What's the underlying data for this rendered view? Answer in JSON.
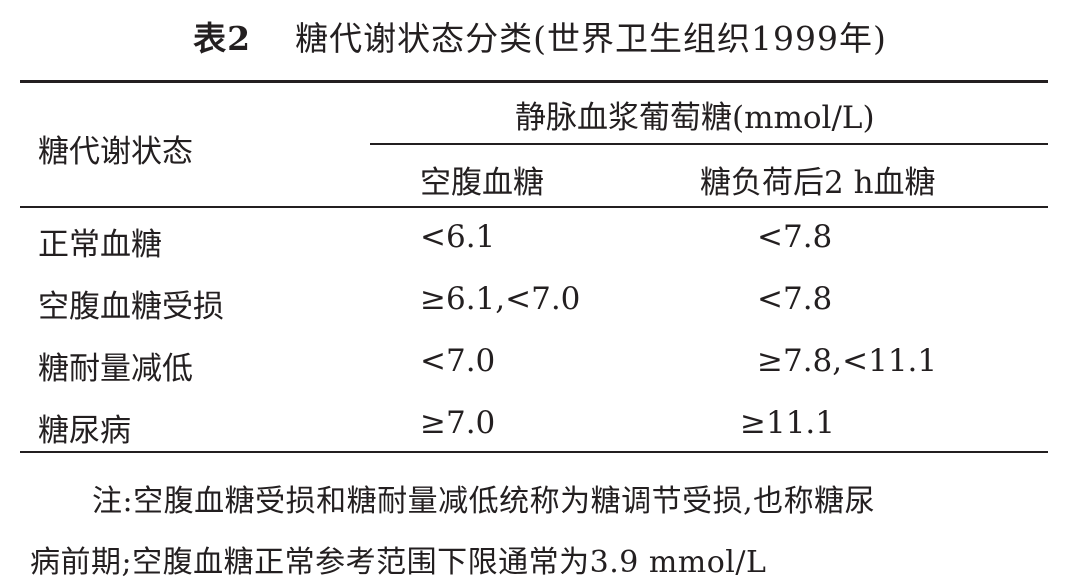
{
  "caption": {
    "number": "表2",
    "title": "糖代谢状态分类(世界卫生组织1999年)"
  },
  "table": {
    "header": {
      "row_header": "糖代谢状态",
      "group_header": "静脉血浆葡萄糖(mmol/L)",
      "columns": [
        "空腹血糖",
        "糖负荷后2 h血糖"
      ]
    },
    "rows": [
      {
        "label": "正常血糖",
        "fasting": "<6.1",
        "post_load": "<7.8"
      },
      {
        "label": "空腹血糖受损",
        "fasting": "≥6.1,<7.0",
        "post_load": "<7.8"
      },
      {
        "label": "糖耐量减低",
        "fasting": "<7.0",
        "post_load": "≥7.8,<11.1"
      },
      {
        "label": "糖尿病",
        "fasting": "≥7.0",
        "post_load": "≥11.1"
      }
    ]
  },
  "note": {
    "line1": "注:空腹血糖受损和糖耐量减低统称为糖调节受损,也称糖尿",
    "line2": "病前期;空腹血糖正常参考范围下限通常为3.9 mmol/L"
  }
}
